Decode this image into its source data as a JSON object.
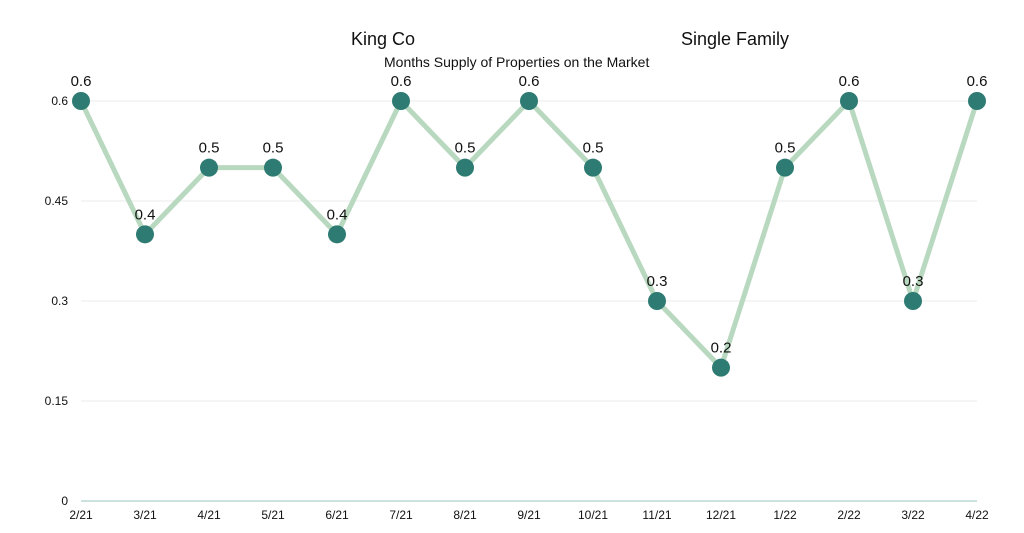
{
  "header": {
    "region": "King Co",
    "property_type": "Single Family",
    "subtitle": "Months Supply of Properties on the Market"
  },
  "colors": {
    "line": "#b8d9bf",
    "marker": "#2e7b73",
    "grid": "#ebebeb",
    "baseline": "#bcd8d4"
  },
  "chart_data": {
    "type": "line",
    "title": "Months Supply of Properties on the Market",
    "xlabel": "",
    "ylabel": "",
    "categories": [
      "2/21",
      "3/21",
      "4/21",
      "5/21",
      "6/21",
      "7/21",
      "8/21",
      "9/21",
      "10/21",
      "11/21",
      "12/21",
      "1/22",
      "2/22",
      "3/22",
      "4/22"
    ],
    "series": [
      {
        "name": "Months Supply",
        "values": [
          0.6,
          0.4,
          0.5,
          0.5,
          0.4,
          0.6,
          0.5,
          0.6,
          0.5,
          0.3,
          0.2,
          0.5,
          0.6,
          0.3,
          0.6
        ]
      }
    ],
    "data_labels": [
      "0.6",
      "0.4",
      "0.5",
      "0.5",
      "0.4",
      "0.6",
      "0.5",
      "0.6",
      "0.5",
      "0.3",
      "0.2",
      "0.5",
      "0.6",
      "0.3",
      "0.6"
    ],
    "yticks": [
      0,
      0.15,
      0.3,
      0.45,
      0.6
    ],
    "ytick_labels": [
      "0",
      "0.15",
      "0.3",
      "0.45",
      "0.6"
    ],
    "ylim": [
      0,
      0.6
    ],
    "grid": true,
    "legend": "none"
  }
}
